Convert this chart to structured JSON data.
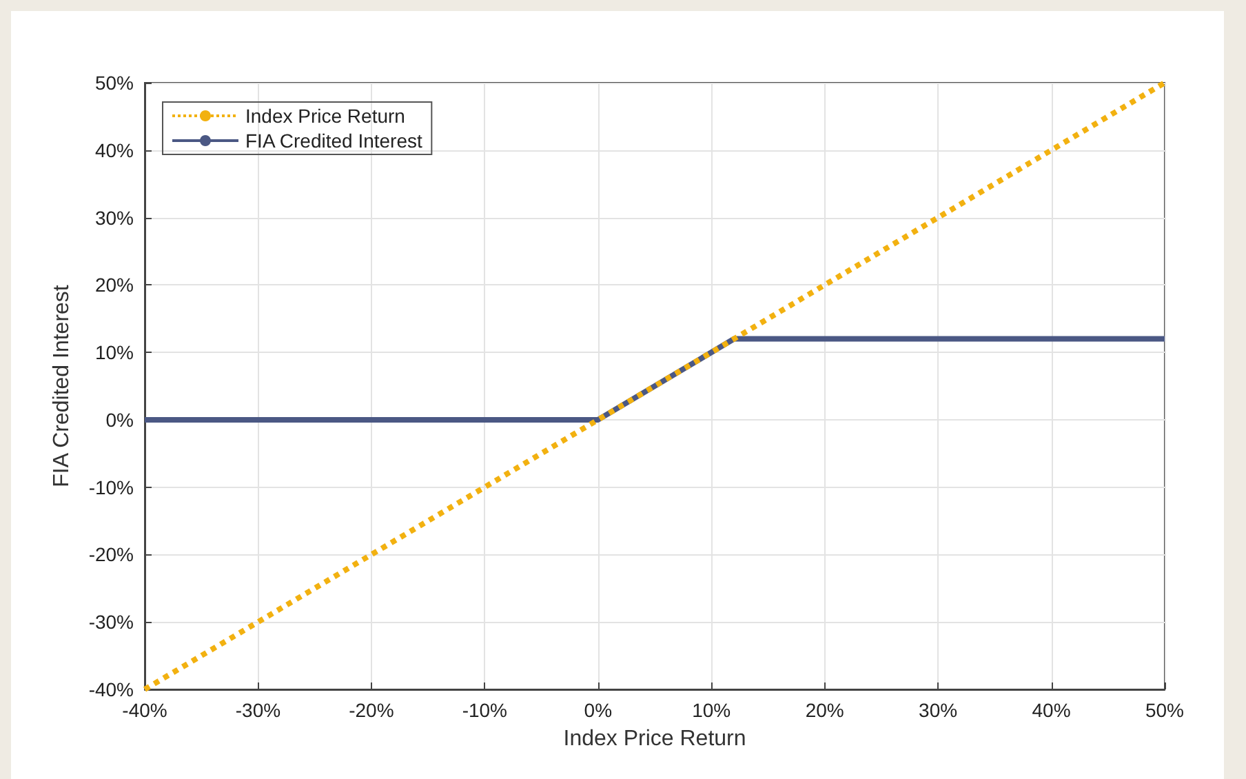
{
  "chart_data": {
    "type": "line",
    "xlabel": "Index Price Return",
    "ylabel": "FIA Credited Interest",
    "xlim": [
      -40,
      50
    ],
    "ylim": [
      -40,
      50
    ],
    "xticks": [
      {
        "value": -40,
        "label": "-40%"
      },
      {
        "value": -30,
        "label": "-30%"
      },
      {
        "value": -20,
        "label": "-20%"
      },
      {
        "value": -10,
        "label": "-10%"
      },
      {
        "value": 0,
        "label": "0%"
      },
      {
        "value": 10,
        "label": "10%"
      },
      {
        "value": 20,
        "label": "20%"
      },
      {
        "value": 30,
        "label": "30%"
      },
      {
        "value": 40,
        "label": "40%"
      },
      {
        "value": 50,
        "label": "50%"
      }
    ],
    "yticks": [
      {
        "value": -40,
        "label": "-40%"
      },
      {
        "value": -30,
        "label": "-30%"
      },
      {
        "value": -20,
        "label": "-20%"
      },
      {
        "value": -10,
        "label": "-10%"
      },
      {
        "value": 0,
        "label": "0%"
      },
      {
        "value": 10,
        "label": "10%"
      },
      {
        "value": 20,
        "label": "20%"
      },
      {
        "value": 30,
        "label": "30%"
      },
      {
        "value": 40,
        "label": "40%"
      },
      {
        "value": 50,
        "label": "50%"
      }
    ],
    "series": [
      {
        "name": "Index Price Return",
        "color": "#f2b110",
        "line_style": "dotted",
        "x": [
          -40,
          50
        ],
        "values": [
          -40,
          50
        ]
      },
      {
        "name": "FIA Credited Interest",
        "color": "#4b5884",
        "line_style": "solid",
        "x": [
          -40,
          0,
          12,
          50
        ],
        "values": [
          0,
          0,
          12,
          12
        ]
      }
    ],
    "grid": true,
    "legend": "top left",
    "marker": "none"
  }
}
